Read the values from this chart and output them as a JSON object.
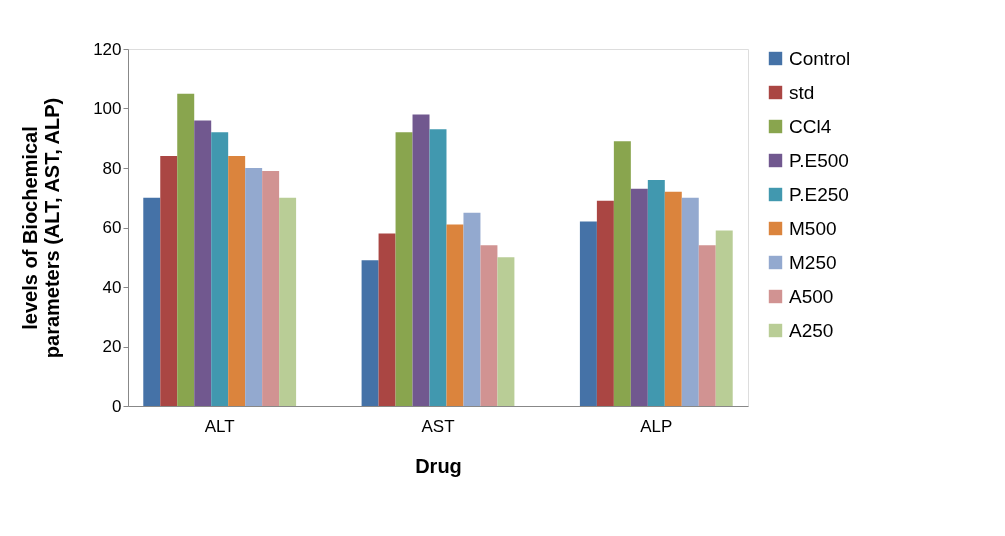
{
  "chart_data": {
    "type": "bar",
    "xlabel": "Drug",
    "ylabel": "levels of Biochemical\nparameters (ALT, AST, ALP)",
    "categories": [
      "ALT",
      "AST",
      "ALP"
    ],
    "series": [
      {
        "name": "Control",
        "color": "#4572a7",
        "values": [
          70,
          49,
          62
        ]
      },
      {
        "name": "std",
        "color": "#aa4643",
        "values": [
          84,
          58,
          69
        ]
      },
      {
        "name": "CCl4",
        "color": "#89a54e",
        "values": [
          105,
          92,
          89
        ]
      },
      {
        "name": "P.E500",
        "color": "#71588f",
        "values": [
          96,
          98,
          73
        ]
      },
      {
        "name": "P.E250",
        "color": "#4198af",
        "values": [
          92,
          93,
          76
        ]
      },
      {
        "name": "M500",
        "color": "#db843d",
        "values": [
          84,
          61,
          72
        ]
      },
      {
        "name": "M250",
        "color": "#93a9cf",
        "values": [
          80,
          65,
          70
        ]
      },
      {
        "name": "A500",
        "color": "#d19392",
        "values": [
          79,
          54,
          54
        ]
      },
      {
        "name": "A250",
        "color": "#b9cd96",
        "values": [
          70,
          50,
          59
        ]
      }
    ],
    "ylim": [
      0,
      120
    ],
    "yticks": [
      0,
      20,
      40,
      60,
      80,
      100,
      120
    ],
    "grid": false,
    "legend": "right"
  }
}
